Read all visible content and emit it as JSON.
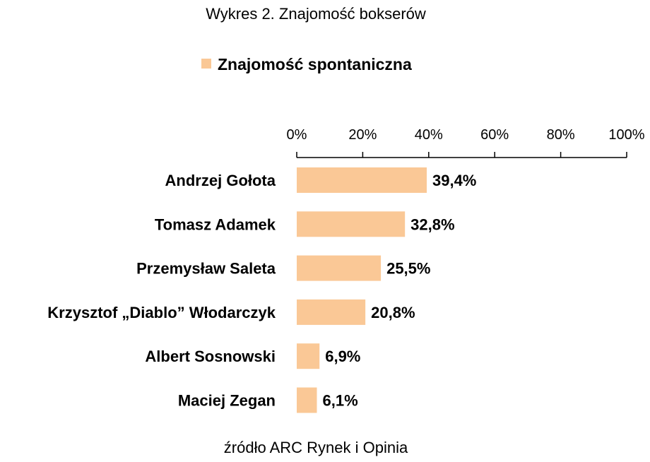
{
  "chart_data": {
    "type": "bar",
    "orientation": "horizontal",
    "title": "Wykres 2. Znajomość bokserów",
    "source": "źródło ARC Rynek i Opinia",
    "categories": [
      "Andrzej  Gołota",
      "Tomasz  Adamek",
      "Przemysław  Saleta",
      "Krzysztof „Diablo” Włodarczyk",
      "Albert Sosnowski",
      "Maciej  Zegan"
    ],
    "series": [
      {
        "name": "Znajomość spontaniczna",
        "color": "#FAC896",
        "values": [
          39.4,
          32.8,
          25.5,
          20.8,
          6.9,
          6.1
        ],
        "labels": [
          "39,4%",
          "32,8%",
          "25,5%",
          "20,8%",
          "6,9%",
          "6,1%"
        ]
      }
    ],
    "xlim": [
      0,
      100
    ],
    "xticks": [
      0,
      20,
      40,
      60,
      80,
      100
    ],
    "xtick_labels": [
      "0%",
      "20%",
      "40%",
      "60%",
      "80%",
      "100%"
    ],
    "axis_position": "top",
    "legend_position": "top",
    "grid": false
  }
}
